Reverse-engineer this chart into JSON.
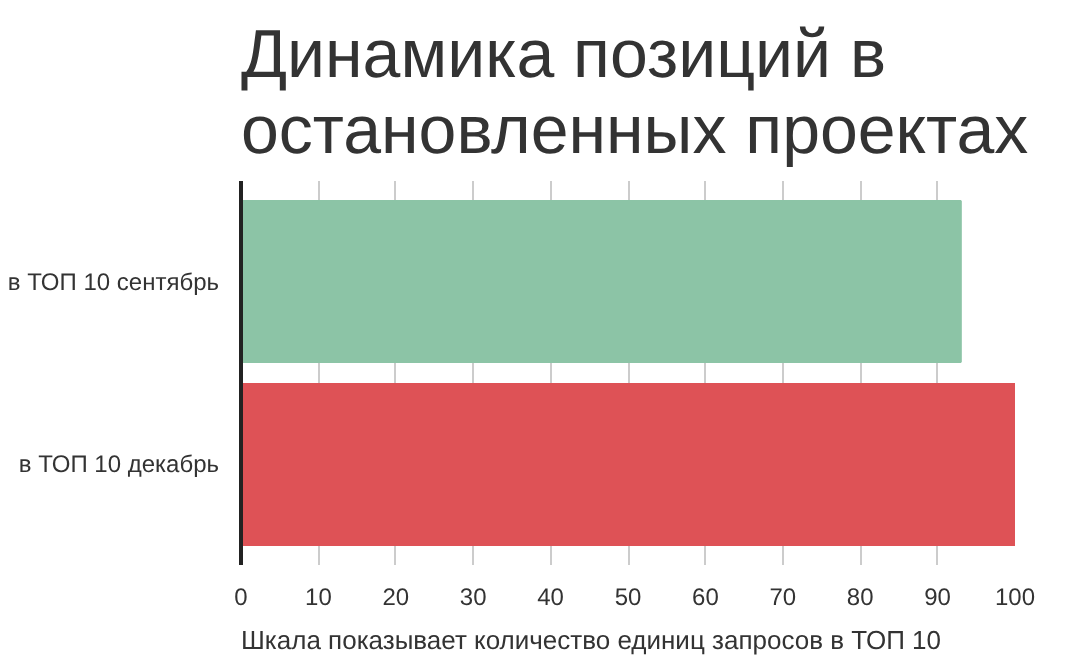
{
  "chart_data": {
    "type": "bar",
    "orientation": "horizontal",
    "title": "Динамика позиций в\nостановленных проектах",
    "categories": [
      "в ТОП 10 сентябрь",
      "в ТОП 10 декабрь"
    ],
    "values": [
      93,
      100
    ],
    "colors": [
      "#8cc4a6",
      "#de5256"
    ],
    "xlim": [
      0,
      100
    ],
    "xticks": [
      0,
      10,
      20,
      30,
      40,
      50,
      60,
      70,
      80,
      90,
      100
    ],
    "grid": "x",
    "annotations": [
      "Шкала показывает количество единиц запросов в ТОП 10"
    ]
  }
}
